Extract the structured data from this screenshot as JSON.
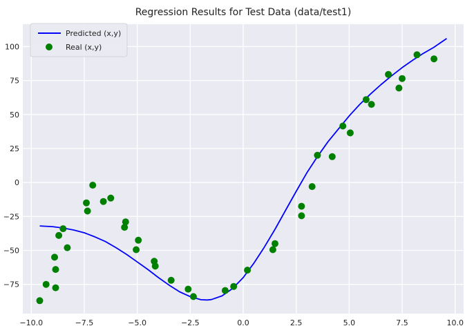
{
  "chart_data": {
    "type": "scatter",
    "title": "Regression Results for Test Data (data/test1)",
    "xlabel": "",
    "ylabel": "",
    "xlim": [
      -10.4,
      10.4
    ],
    "ylim": [
      -96.5,
      116.5
    ],
    "x_ticks": [
      -10.0,
      -7.5,
      -5.0,
      -2.5,
      0.0,
      2.5,
      5.0,
      7.5,
      10.0
    ],
    "x_tick_labels": [
      "−10.0",
      "−7.5",
      "−5.0",
      "−2.5",
      "0.0",
      "2.5",
      "5.0",
      "7.5",
      "10.0"
    ],
    "y_ticks": [
      -75,
      -50,
      -25,
      0,
      25,
      50,
      75,
      100
    ],
    "y_tick_labels": [
      "−75",
      "−50",
      "−25",
      "0",
      "25",
      "50",
      "75",
      "100"
    ],
    "grid": true,
    "legend_position": "top-left",
    "background_color": "#eaeaf2",
    "series": [
      {
        "name": "Predicted (x,y)",
        "kind": "line",
        "color": "#0000ff",
        "x": [
          -9.6,
          -9.0,
          -8.5,
          -8.0,
          -7.5,
          -7.0,
          -6.5,
          -6.0,
          -5.5,
          -5.0,
          -4.5,
          -4.0,
          -3.5,
          -3.0,
          -2.5,
          -2.0,
          -1.7,
          -1.5,
          -1.0,
          -0.5,
          0.0,
          0.5,
          1.0,
          1.5,
          2.0,
          2.5,
          3.0,
          3.5,
          4.0,
          4.5,
          5.0,
          5.5,
          6.0,
          6.5,
          7.0,
          7.5,
          8.0,
          8.5,
          9.0,
          9.6
        ],
        "y": [
          -32,
          -32.5,
          -33.5,
          -35,
          -37,
          -40,
          -43.5,
          -48,
          -53,
          -58.5,
          -64,
          -70,
          -75.5,
          -80.5,
          -84,
          -86.3,
          -86.5,
          -86.2,
          -83.5,
          -78,
          -70,
          -59.5,
          -47.5,
          -34.5,
          -20.5,
          -6.5,
          7,
          19,
          30,
          39.5,
          49,
          57.5,
          65,
          72,
          78.5,
          84.5,
          90,
          95,
          99.5,
          106
        ]
      },
      {
        "name": "Real (x,y)",
        "kind": "scatter",
        "color": "#008000",
        "x": [
          -9.6,
          -9.3,
          -8.9,
          -8.85,
          -8.85,
          -8.7,
          -8.5,
          -8.3,
          -7.4,
          -7.35,
          -7.1,
          -6.6,
          -6.25,
          -5.6,
          -5.55,
          -5.05,
          -4.95,
          -4.2,
          -4.15,
          -3.4,
          -2.6,
          -2.35,
          -0.85,
          -0.45,
          0.2,
          1.4,
          1.5,
          2.75,
          2.75,
          3.25,
          3.5,
          4.2,
          4.7,
          5.05,
          5.8,
          6.05,
          6.85,
          7.35,
          7.5,
          8.2,
          9.0
        ],
        "y": [
          -87,
          -75,
          -55,
          -64,
          -77.5,
          -39,
          -34,
          -48,
          -15,
          -21,
          -2,
          -14,
          -11.5,
          -33,
          -29,
          -49.5,
          -42.5,
          -58,
          -61.5,
          -72,
          -78.5,
          -84,
          -79.5,
          -76.5,
          -64.5,
          -49.5,
          -45,
          -17.5,
          -24.5,
          -3,
          20,
          19,
          41.5,
          36.5,
          61,
          57.5,
          79.5,
          69.5,
          76.5,
          94,
          91
        ]
      }
    ]
  }
}
